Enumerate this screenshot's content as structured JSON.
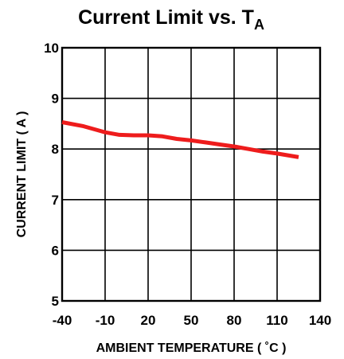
{
  "chart_data": {
    "type": "line",
    "title": "Current Limit vs. T",
    "title_subscript": "A",
    "xlabel": "AMBIENT TEMPERATURE ( ˚C )",
    "ylabel": "CURRENT LIMIT ( A )",
    "xlim": [
      -40,
      140
    ],
    "ylim": [
      5,
      10
    ],
    "xticks": [
      -40,
      -10,
      20,
      50,
      80,
      110,
      140
    ],
    "xtick_labels": [
      "-40",
      "-10",
      "20",
      "50",
      "80",
      "110",
      "140"
    ],
    "yticks": [
      5,
      6,
      7,
      8,
      9,
      10
    ],
    "ytick_labels": [
      "5",
      "6",
      "7",
      "8",
      "9",
      "10"
    ],
    "grid": true,
    "series": [
      {
        "color": "#ee1c1c",
        "x": [
          -40,
          -25,
          -10,
          0,
          10,
          20,
          30,
          40,
          50,
          60,
          70,
          80,
          90,
          100,
          110,
          125
        ],
        "y": [
          8.53,
          8.45,
          8.33,
          8.28,
          8.27,
          8.27,
          8.25,
          8.2,
          8.17,
          8.13,
          8.09,
          8.05,
          8.0,
          7.95,
          7.91,
          7.84
        ]
      }
    ]
  }
}
